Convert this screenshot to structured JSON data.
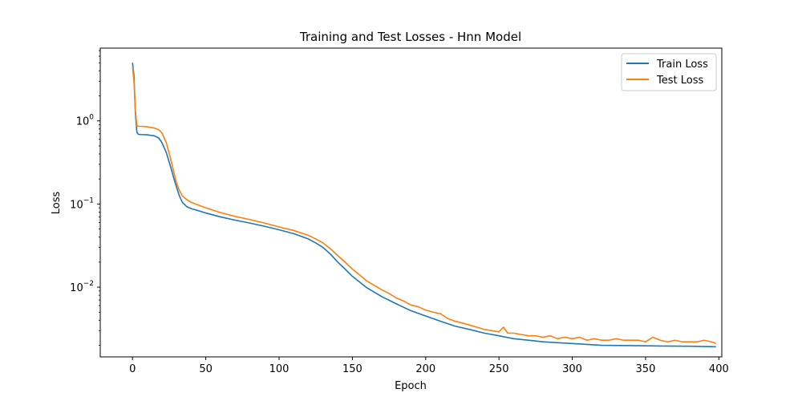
{
  "chart_data": {
    "type": "line",
    "title": "Training and Test Losses - Hnn Model",
    "xlabel": "Epoch",
    "ylabel": "Loss",
    "xlim": [
      -22,
      402
    ],
    "ylim": [
      0.00145,
      7.5
    ],
    "yscale": "log",
    "grid": false,
    "legend": "top-right",
    "x_ticks": [
      0,
      50,
      100,
      150,
      200,
      250,
      300,
      350,
      400
    ],
    "x_tick_labels": [
      "0",
      "50",
      "100",
      "150",
      "200",
      "250",
      "300",
      "350",
      "400"
    ],
    "y_ticks": [
      {
        "value": 1,
        "base": "10",
        "exp": "0"
      },
      {
        "value": 0.1,
        "base": "10",
        "exp": "−1"
      },
      {
        "value": 0.01,
        "base": "10",
        "exp": "−2"
      }
    ],
    "series": [
      {
        "name": "Train Loss",
        "color": "#1f77b4",
        "points": [
          [
            0,
            5.0
          ],
          [
            1,
            3.5
          ],
          [
            2,
            1.2
          ],
          [
            3,
            0.73
          ],
          [
            4,
            0.69
          ],
          [
            6,
            0.685
          ],
          [
            10,
            0.68
          ],
          [
            15,
            0.66
          ],
          [
            18,
            0.62
          ],
          [
            20,
            0.55
          ],
          [
            23,
            0.42
          ],
          [
            26,
            0.28
          ],
          [
            28,
            0.21
          ],
          [
            30,
            0.16
          ],
          [
            32,
            0.125
          ],
          [
            34,
            0.105
          ],
          [
            37,
            0.093
          ],
          [
            40,
            0.088
          ],
          [
            45,
            0.083
          ],
          [
            50,
            0.078
          ],
          [
            60,
            0.07
          ],
          [
            70,
            0.064
          ],
          [
            80,
            0.059
          ],
          [
            90,
            0.054
          ],
          [
            100,
            0.049
          ],
          [
            110,
            0.044
          ],
          [
            120,
            0.038
          ],
          [
            125,
            0.034
          ],
          [
            130,
            0.03
          ],
          [
            135,
            0.025
          ],
          [
            140,
            0.02
          ],
          [
            145,
            0.0165
          ],
          [
            150,
            0.0135
          ],
          [
            155,
            0.0115
          ],
          [
            160,
            0.0098
          ],
          [
            170,
            0.0077
          ],
          [
            180,
            0.0063
          ],
          [
            190,
            0.0052
          ],
          [
            200,
            0.0045
          ],
          [
            210,
            0.0039
          ],
          [
            220,
            0.0034
          ],
          [
            230,
            0.0031
          ],
          [
            240,
            0.0028
          ],
          [
            250,
            0.0026
          ],
          [
            260,
            0.0024
          ],
          [
            270,
            0.0023
          ],
          [
            280,
            0.0022
          ],
          [
            290,
            0.00215
          ],
          [
            300,
            0.0021
          ],
          [
            310,
            0.00205
          ],
          [
            320,
            0.002
          ],
          [
            340,
            0.00198
          ],
          [
            360,
            0.00196
          ],
          [
            380,
            0.00195
          ],
          [
            398,
            0.00192
          ]
        ]
      },
      {
        "name": "Test Loss",
        "color": "#ff7f0e",
        "points": [
          [
            0,
            4.5
          ],
          [
            1,
            3.0
          ],
          [
            2,
            1.3
          ],
          [
            3,
            0.87
          ],
          [
            4,
            0.86
          ],
          [
            6,
            0.86
          ],
          [
            10,
            0.85
          ],
          [
            15,
            0.82
          ],
          [
            18,
            0.78
          ],
          [
            20,
            0.72
          ],
          [
            23,
            0.55
          ],
          [
            26,
            0.35
          ],
          [
            28,
            0.25
          ],
          [
            30,
            0.18
          ],
          [
            32,
            0.145
          ],
          [
            34,
            0.125
          ],
          [
            37,
            0.113
          ],
          [
            40,
            0.105
          ],
          [
            45,
            0.097
          ],
          [
            50,
            0.09
          ],
          [
            60,
            0.079
          ],
          [
            70,
            0.071
          ],
          [
            80,
            0.065
          ],
          [
            90,
            0.059
          ],
          [
            100,
            0.053
          ],
          [
            110,
            0.048
          ],
          [
            120,
            0.042
          ],
          [
            125,
            0.038
          ],
          [
            130,
            0.034
          ],
          [
            135,
            0.029
          ],
          [
            140,
            0.024
          ],
          [
            145,
            0.02
          ],
          [
            150,
            0.0165
          ],
          [
            155,
            0.014
          ],
          [
            160,
            0.0118
          ],
          [
            165,
            0.0105
          ],
          [
            170,
            0.0093
          ],
          [
            175,
            0.0084
          ],
          [
            180,
            0.0074
          ],
          [
            185,
            0.0068
          ],
          [
            190,
            0.0061
          ],
          [
            195,
            0.0058
          ],
          [
            200,
            0.0053
          ],
          [
            205,
            0.005
          ],
          [
            210,
            0.0048
          ],
          [
            215,
            0.0042
          ],
          [
            220,
            0.0039
          ],
          [
            225,
            0.0037
          ],
          [
            230,
            0.0035
          ],
          [
            235,
            0.0033
          ],
          [
            240,
            0.0031
          ],
          [
            245,
            0.003
          ],
          [
            250,
            0.0029
          ],
          [
            253,
            0.0033
          ],
          [
            256,
            0.0028
          ],
          [
            260,
            0.0028
          ],
          [
            265,
            0.0027
          ],
          [
            270,
            0.0026
          ],
          [
            275,
            0.0026
          ],
          [
            280,
            0.0025
          ],
          [
            285,
            0.0026
          ],
          [
            290,
            0.0024
          ],
          [
            295,
            0.0025
          ],
          [
            300,
            0.0024
          ],
          [
            305,
            0.0025
          ],
          [
            310,
            0.0023
          ],
          [
            315,
            0.0024
          ],
          [
            320,
            0.0023
          ],
          [
            325,
            0.0023
          ],
          [
            330,
            0.0024
          ],
          [
            335,
            0.0023
          ],
          [
            340,
            0.0023
          ],
          [
            345,
            0.0023
          ],
          [
            350,
            0.0022
          ],
          [
            355,
            0.0025
          ],
          [
            360,
            0.0023
          ],
          [
            365,
            0.0022
          ],
          [
            370,
            0.0023
          ],
          [
            375,
            0.0022
          ],
          [
            380,
            0.0022
          ],
          [
            385,
            0.0022
          ],
          [
            390,
            0.0023
          ],
          [
            395,
            0.0022
          ],
          [
            398,
            0.0021
          ]
        ]
      }
    ]
  }
}
